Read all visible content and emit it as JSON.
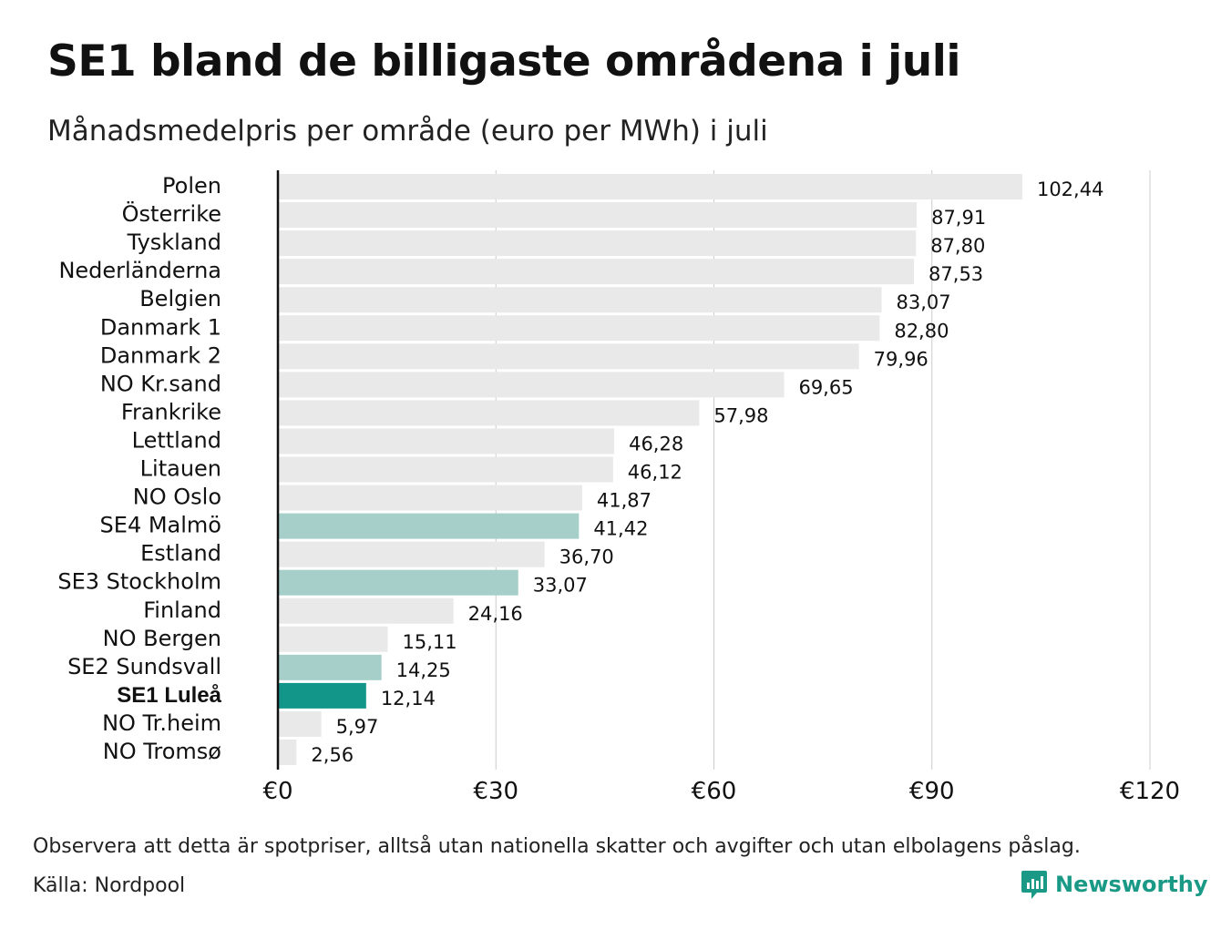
{
  "title": "SE1 bland de billigaste områdena i juli",
  "subtitle": "Månadsmedelpris per område (euro per MWh) i juli",
  "note": "Observera att detta är spotpriser, alltså utan nationella skatter och avgifter och utan elbolagens påslag.",
  "source": "Källa: Nordpool",
  "brand": {
    "name": "Newsworthy",
    "icon": "newsworthy-logo-icon",
    "color": "#1a9a86"
  },
  "colors": {
    "default_bar": "#e9e9e9",
    "swedish_bar": "#a5cfc8",
    "highlight_bar": "#13968a",
    "axis_line": "#111111",
    "grid": "#cccccc"
  },
  "chart_data": {
    "type": "bar",
    "orientation": "horizontal",
    "xlim": [
      0,
      120
    ],
    "x_ticks": [
      0,
      30,
      60,
      90,
      120
    ],
    "x_tick_labels": [
      "€0",
      "€30",
      "€60",
      "€90",
      "€120"
    ],
    "grid": true,
    "categories": [
      "Polen",
      "Österrike",
      "Tyskland",
      "Nederländerna",
      "Belgien",
      "Danmark  1",
      "Danmark  2",
      "NO Kr.sand",
      "Frankrike",
      "Lettland",
      "Litauen",
      "NO Oslo",
      "SE4  Malmö",
      "Estland",
      "SE3  Stockholm",
      "Finland",
      "NO Bergen",
      "SE2  Sundsvall",
      "SE1 Luleå",
      "NO Tr.heim",
      "NO Tromsø"
    ],
    "values": [
      102.44,
      87.91,
      87.8,
      87.53,
      83.07,
      82.8,
      79.96,
      69.65,
      57.98,
      46.28,
      46.12,
      41.87,
      41.42,
      36.7,
      33.07,
      24.16,
      15.11,
      14.25,
      12.14,
      5.97,
      2.56
    ],
    "value_labels": [
      "102,44",
      "87,91",
      "87,80",
      "87,53",
      "83,07",
      "82,80",
      "79,96",
      "69,65",
      "57,98",
      "46,28",
      "46,12",
      "41,87",
      "41,42",
      "36,70",
      "33,07",
      "24,16",
      "15,11",
      "14,25",
      "12,14",
      "5,97",
      "2,56"
    ],
    "bar_style": [
      "default",
      "default",
      "default",
      "default",
      "default",
      "default",
      "default",
      "default",
      "default",
      "default",
      "default",
      "default",
      "swedish",
      "default",
      "swedish",
      "default",
      "default",
      "swedish",
      "highlight",
      "default",
      "default"
    ],
    "bold_labels": [
      "SE1 Luleå"
    ]
  }
}
